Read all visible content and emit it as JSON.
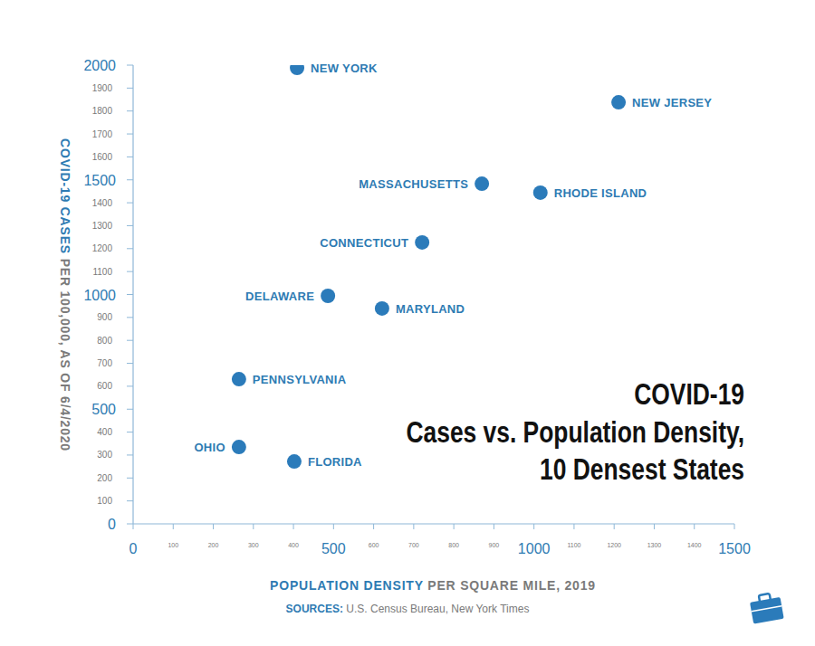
{
  "chart_data": {
    "type": "scatter",
    "title": [
      "COVID-19",
      "Cases vs. Population Density,",
      "10 Densest States"
    ],
    "x_label": "POPULATION DENSITY PER SQUARE MILE, 2019",
    "y_label": "COVID-19 CASES PER 100,000, AS OF 6/4/2020",
    "source": "SOURCES: U.S. Census Bureau, New York Times",
    "point_labels": [
      "NEW YORK",
      "NEW JERSEY",
      "MASSACHUSETTS",
      "RHODE ISLAND",
      "CONNECTICUT",
      "DELAWARE",
      "MARYLAND",
      "PENNSYLVANIA",
      "OHIO",
      "FLORIDA"
    ],
    "x": [
      409,
      1211,
      870,
      1016,
      721,
      486,
      621,
      264,
      264,
      402
    ],
    "values": [
      1988,
      1838,
      1483,
      1444,
      1227,
      994,
      939,
      631,
      335,
      272
    ],
    "color": "#2b7bba",
    "marker": "circle",
    "grid": false,
    "xlim": [
      0,
      1500
    ],
    "xticks": [
      0,
      100,
      200,
      300,
      400,
      500,
      600,
      700,
      800,
      900,
      1000,
      1100,
      1200,
      1300,
      1400,
      1500
    ],
    "ylim": [
      0,
      2000
    ],
    "yticks": [
      0,
      100,
      200,
      300,
      400,
      500,
      600,
      700,
      800,
      900,
      1000,
      1100,
      1200,
      1300,
      1400,
      1500,
      1600,
      1700,
      1800,
      1900,
      2000
    ]
  }
}
